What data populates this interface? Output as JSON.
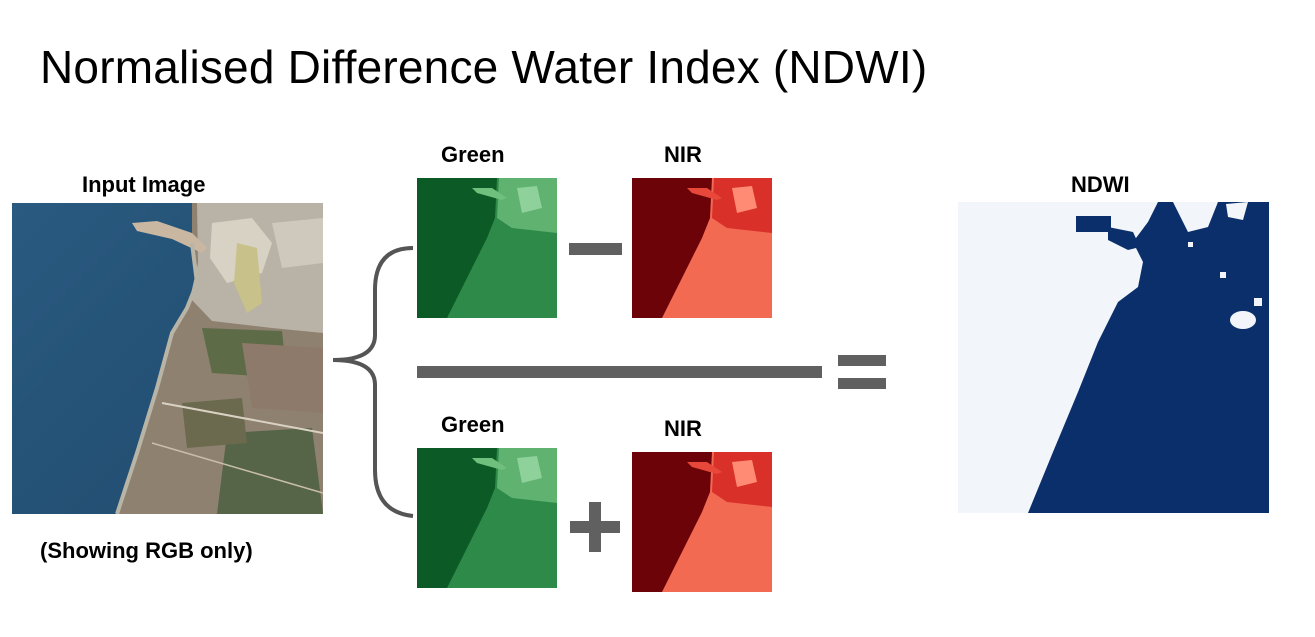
{
  "title": "Normalised Difference Water Index (NDWI)",
  "input": {
    "label": "Input Image",
    "caption": "(Showing RGB only)"
  },
  "numerator": {
    "green_label": "Green",
    "nir_label": "NIR",
    "operator": "minus"
  },
  "denominator": {
    "green_label": "Green",
    "nir_label": "NIR",
    "operator": "plus"
  },
  "equals_operator": "equals",
  "output": {
    "label": "NDWI"
  },
  "colors": {
    "green_band_dark": "#0c5a25",
    "green_band_light": "#5fb26f",
    "nir_band_dark": "#6b0309",
    "nir_band_light": "#f36a52",
    "water_blue": "#0b2f6b",
    "land_white": "#f2f6fb",
    "operator_gray": "#606060",
    "rgb_sea": "#2c5e84"
  }
}
